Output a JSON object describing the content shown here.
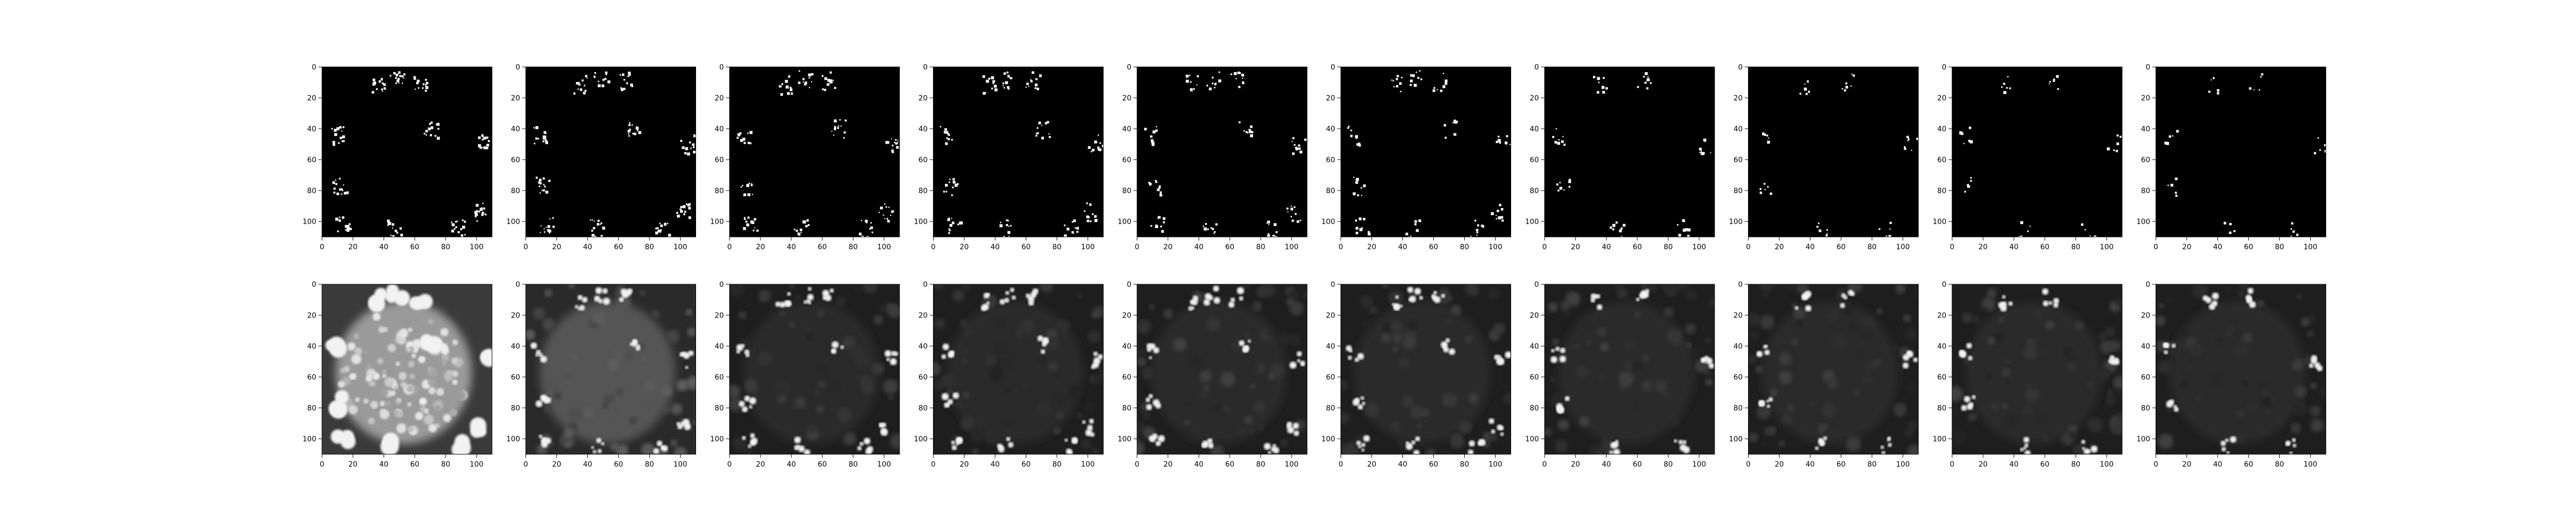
{
  "figure": {
    "rows": [
      {
        "name": "mask-row",
        "kind": "binary-mask",
        "colormap": "gray"
      },
      {
        "name": "image-row",
        "kind": "grayscale-image",
        "colormap": "gray"
      }
    ],
    "panel_count_per_row": 10,
    "axis_ticks": {
      "x": [
        "0",
        "20",
        "40",
        "60",
        "80",
        "100"
      ],
      "y": [
        "0",
        "20",
        "40",
        "60",
        "80",
        "100"
      ]
    },
    "colors": {
      "background": "#ffffff",
      "mask_background": "#000000",
      "mask_foreground": "#ffffff"
    }
  }
}
